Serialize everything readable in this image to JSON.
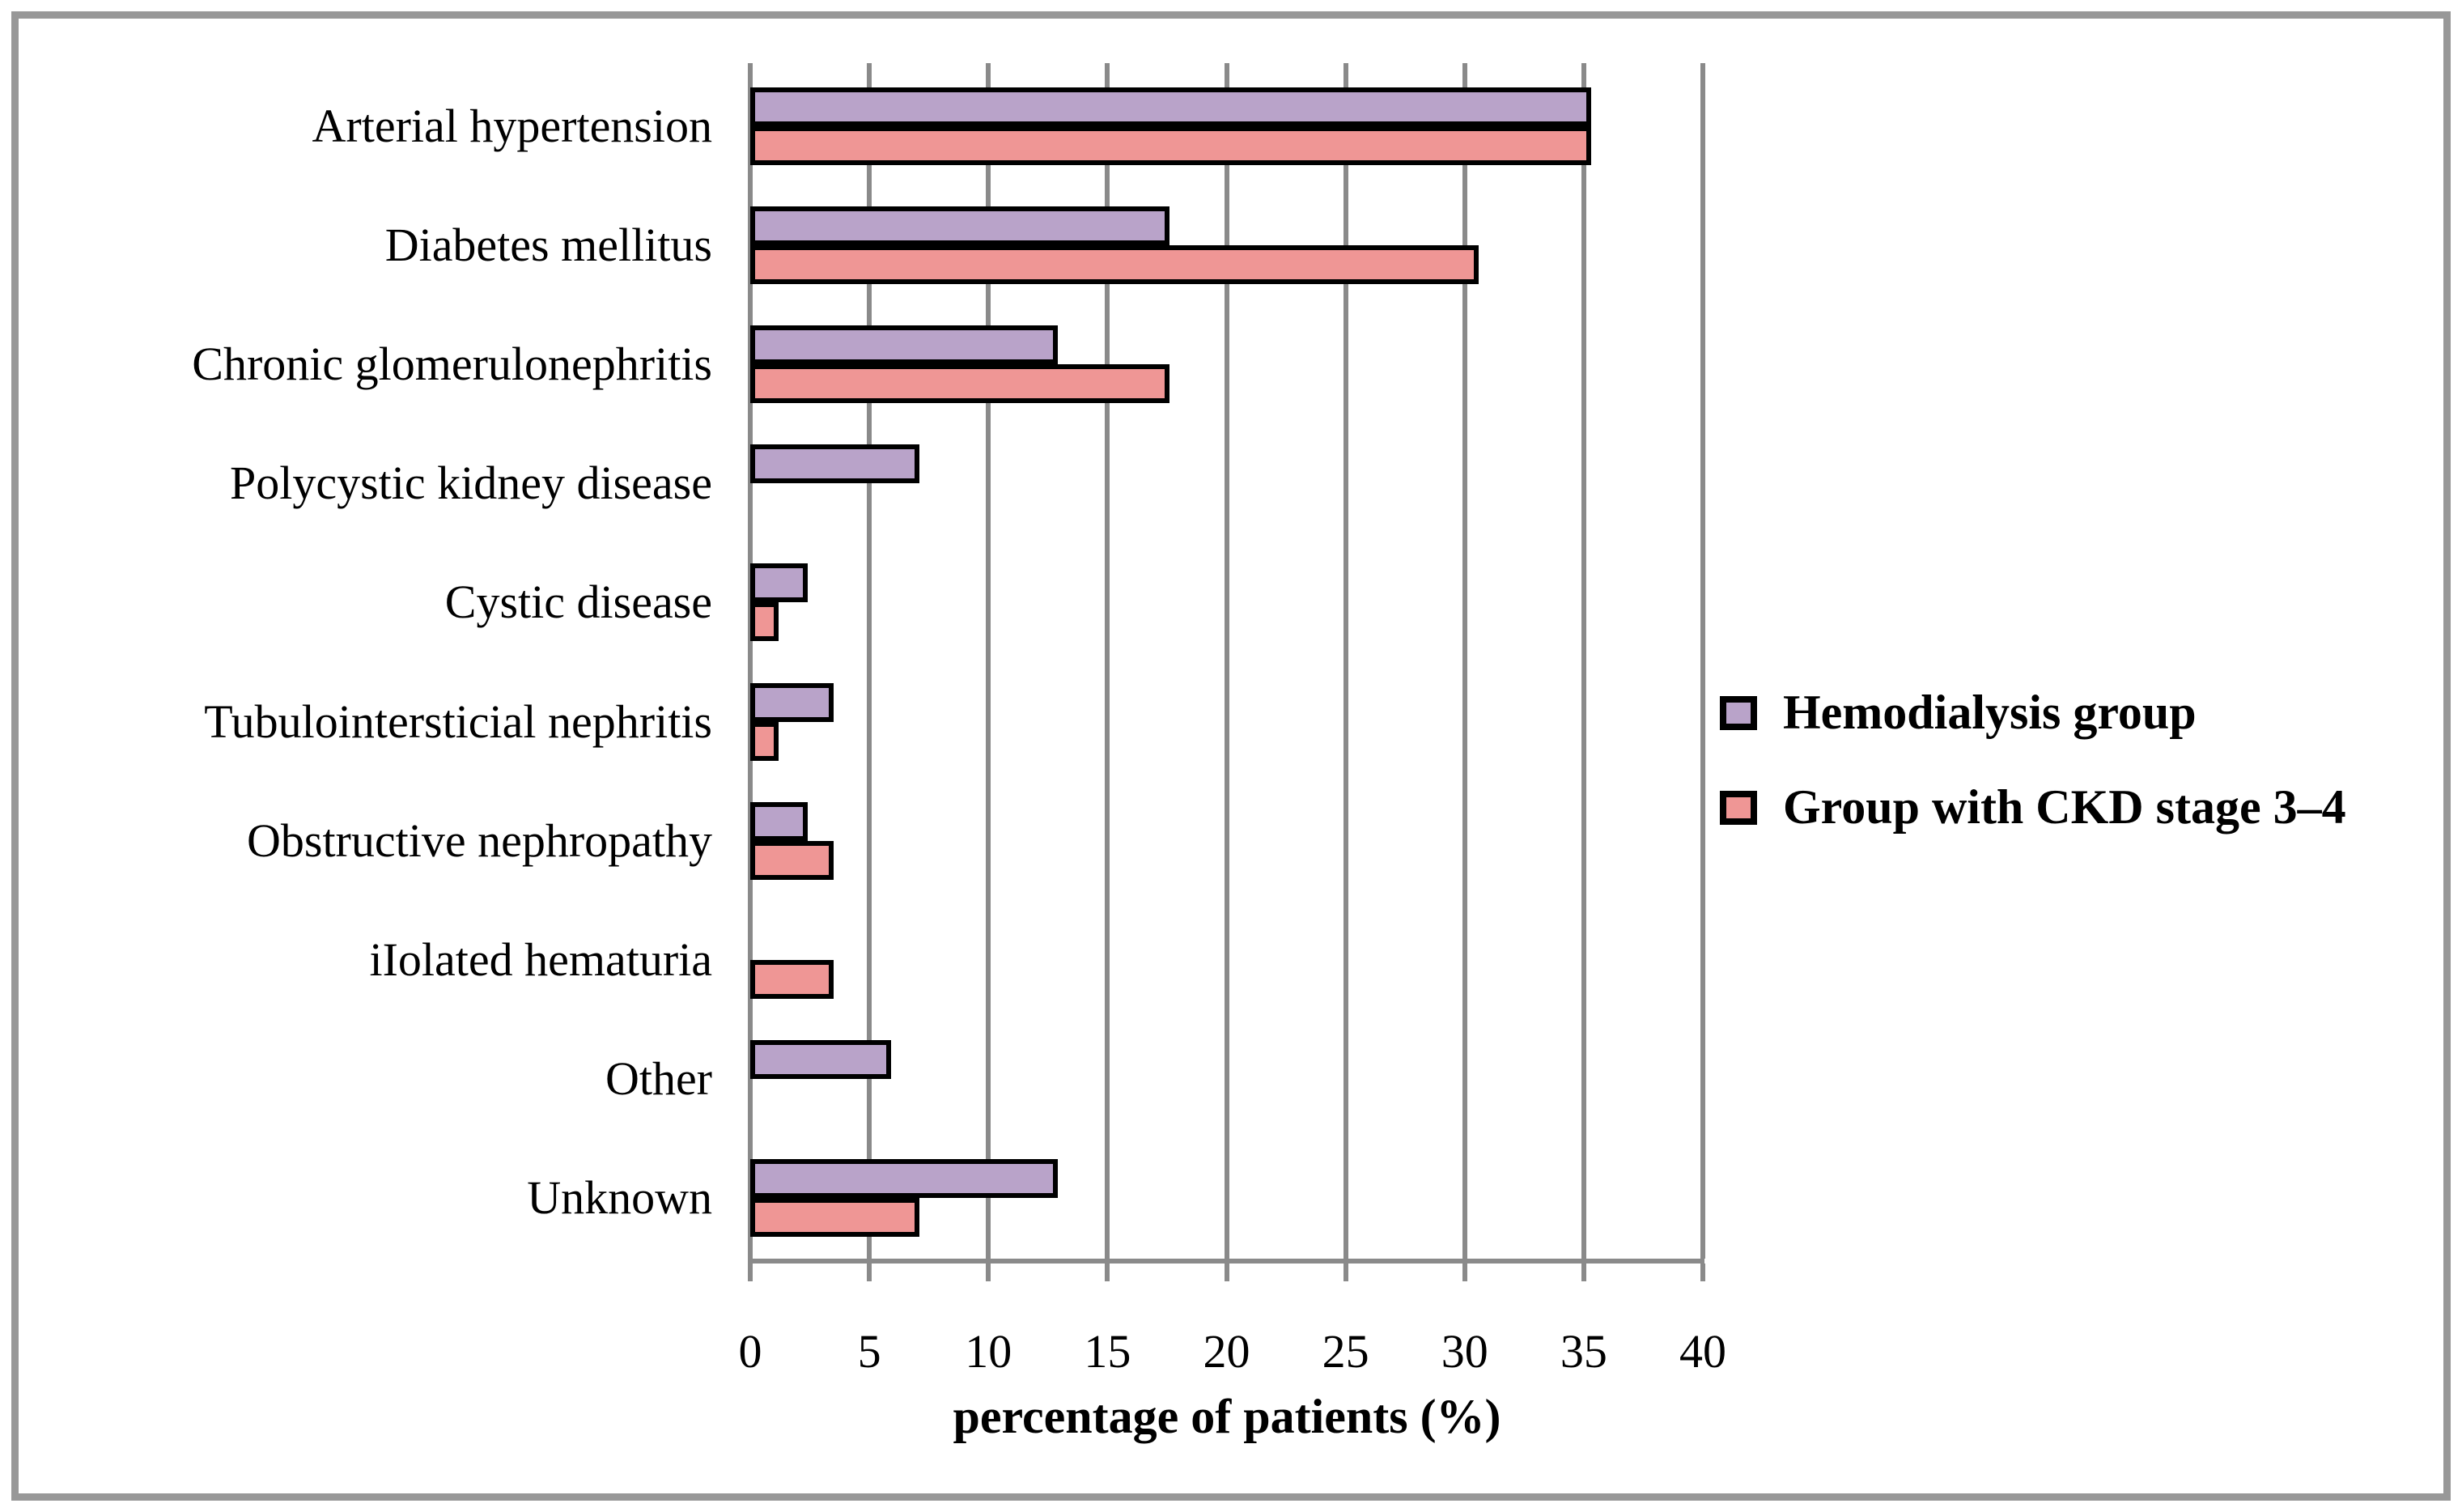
{
  "figure": {
    "background": "#ffffff",
    "frame_color": "#989898"
  },
  "chart_data": {
    "type": "bar",
    "orientation": "horizontal",
    "title": "",
    "xlabel": "percentage of patients (%)",
    "ylabel": "",
    "xlim": [
      0,
      40
    ],
    "xticks": [
      0,
      5,
      10,
      15,
      20,
      25,
      30,
      35,
      40
    ],
    "grid": "vertical",
    "legend_position": "right",
    "axis_color": "#8a8a8a",
    "bar_border_color": "#000000",
    "categories": [
      "Arterial hypertension",
      "Diabetes mellitus",
      "Chronic glomerulonephritis",
      "Polycystic kidney disease",
      "Cystic disease",
      "Tubulointersticial nephritis",
      "Obstructive nephropathy",
      "iIolated hematuria",
      "Other",
      "Unknown"
    ],
    "series": [
      {
        "name": "Hemodialysis group",
        "color": "#b9a3c9",
        "values": [
          35.3,
          17.6,
          12.9,
          7.1,
          2.4,
          3.5,
          2.4,
          0,
          5.9,
          12.9
        ]
      },
      {
        "name": "Group with CKD stage 3–4",
        "color": "#ef9695",
        "values": [
          35.3,
          30.6,
          17.6,
          0,
          1.2,
          1.2,
          3.5,
          3.5,
          0,
          7.1
        ]
      }
    ]
  }
}
